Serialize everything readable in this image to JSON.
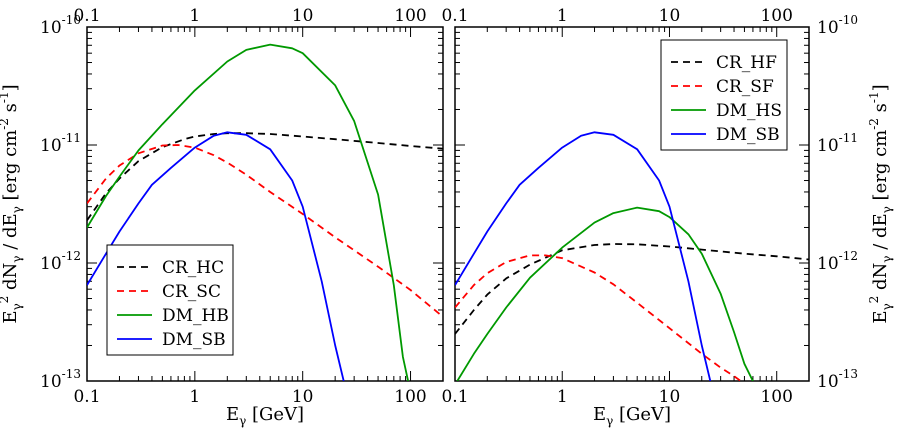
{
  "chart_data": [
    {
      "panel": "left",
      "type": "line",
      "x_scale": "log",
      "y_scale": "log",
      "xlim": [
        0.1,
        200
      ],
      "ylim": [
        1e-13,
        1e-10
      ],
      "xlabel": "E_γ [GeV]",
      "ylabel": "E_γ^2 dN_γ / dE_γ [erg cm^-2 s^-1]",
      "x_tick_labels": [
        "0.1",
        "1",
        "10",
        "100"
      ],
      "x_tick_labels_top": [
        "0.1",
        "1",
        "10",
        "100"
      ],
      "y_tick_labels": [
        "10^-13",
        "10^-12",
        "10^-11",
        "10^-10"
      ],
      "legend_position": "bottom-left",
      "series": [
        {
          "name": "CR_HC",
          "color": "#000000",
          "style": "dashed",
          "x": [
            0.1,
            0.15,
            0.2,
            0.3,
            0.5,
            0.8,
            1,
            1.5,
            2,
            3,
            5,
            10,
            20,
            50,
            100,
            200
          ],
          "y": [
            2.3e-12,
            3.9e-12,
            5.2e-12,
            7.3e-12,
            9.6e-12,
            1.12e-11,
            1.18e-11,
            1.24e-11,
            1.26e-11,
            1.26e-11,
            1.24e-11,
            1.18e-11,
            1.12e-11,
            1.04e-11,
            9.8e-12,
            9.3e-12
          ]
        },
        {
          "name": "CR_SC",
          "color": "#ff0000",
          "style": "dashed",
          "x": [
            0.1,
            0.15,
            0.2,
            0.3,
            0.5,
            0.7,
            1,
            1.5,
            2,
            3,
            5,
            10,
            20,
            50,
            100,
            200
          ],
          "y": [
            3.2e-12,
            5.2e-12,
            6.7e-12,
            8.5e-12,
            9.9e-12,
            1e-11,
            9.5e-12,
            8.2e-12,
            7.1e-12,
            5.6e-12,
            4e-12,
            2.6e-12,
            1.65e-12,
            9.3e-13,
            5.9e-13,
            3.5e-13
          ]
        },
        {
          "name": "DM_HB",
          "color": "#009900",
          "style": "solid",
          "x": [
            0.1,
            0.15,
            0.2,
            0.3,
            0.5,
            1,
            2,
            3,
            5,
            8,
            10,
            20,
            30,
            50,
            70,
            85,
            95
          ],
          "y": [
            2e-12,
            3.7e-12,
            5.4e-12,
            9e-12,
            1.5e-11,
            2.9e-11,
            5.1e-11,
            6.4e-11,
            7.1e-11,
            6.6e-11,
            6e-11,
            3.2e-11,
            1.6e-11,
            3.8e-12,
            6.5e-13,
            1.6e-13,
            1e-13
          ]
        },
        {
          "name": "DM_SB",
          "color": "#0000ff",
          "style": "solid",
          "x": [
            0.1,
            0.15,
            0.2,
            0.3,
            0.4,
            0.6,
            1,
            1.5,
            2,
            3,
            5,
            8,
            10,
            15,
            20,
            24
          ],
          "y": [
            6.5e-13,
            1.2e-12,
            1.85e-12,
            3.2e-12,
            4.6e-12,
            6.4e-12,
            9.5e-12,
            1.2e-11,
            1.28e-11,
            1.22e-11,
            9.2e-12,
            5e-12,
            3e-12,
            7e-13,
            2e-13,
            1e-13
          ]
        }
      ]
    },
    {
      "panel": "right",
      "type": "line",
      "x_scale": "log",
      "y_scale": "log",
      "xlim": [
        0.1,
        200
      ],
      "ylim": [
        1e-13,
        1e-10
      ],
      "xlabel": "E_γ [GeV]",
      "ylabel": "E_γ^2 dN_γ / dE_γ [erg cm^-2 s^-1]",
      "x_tick_labels": [
        "0.1",
        "1",
        "10",
        "100"
      ],
      "x_tick_labels_top": [
        "0.1",
        "1",
        "10",
        "100"
      ],
      "y_tick_labels": [
        "10^-13",
        "10^-12",
        "10^-11",
        "10^-10"
      ],
      "legend_position": "top-right",
      "series": [
        {
          "name": "CR_HF",
          "color": "#000000",
          "style": "dashed",
          "x": [
            0.1,
            0.15,
            0.2,
            0.3,
            0.5,
            1,
            2,
            3,
            5,
            10,
            20,
            50,
            100,
            200
          ],
          "y": [
            2.5e-13,
            4e-13,
            5.4e-13,
            7.4e-13,
            9.7e-13,
            1.28e-12,
            1.42e-12,
            1.45e-12,
            1.44e-12,
            1.38e-12,
            1.3e-12,
            1.2e-12,
            1.14e-12,
            1.07e-12
          ]
        },
        {
          "name": "CR_SF",
          "color": "#ff0000",
          "style": "dashed",
          "x": [
            0.1,
            0.15,
            0.2,
            0.3,
            0.5,
            0.7,
            1,
            2,
            3,
            5,
            10,
            20,
            30,
            40,
            50
          ],
          "y": [
            4.2e-13,
            6.5e-13,
            8.2e-13,
            1.02e-12,
            1.16e-12,
            1.16e-12,
            1.1e-12,
            8.3e-13,
            6.6e-13,
            4.6e-13,
            2.8e-13,
            1.7e-13,
            1.3e-13,
            1.1e-13,
            9.5e-14
          ]
        },
        {
          "name": "DM_HS",
          "color": "#009900",
          "style": "solid",
          "x": [
            0.105,
            0.15,
            0.2,
            0.3,
            0.5,
            1,
            2,
            3,
            5,
            8,
            10,
            15,
            20,
            30,
            40,
            50,
            60
          ],
          "y": [
            1e-13,
            1.7e-13,
            2.5e-13,
            4.2e-13,
            7.5e-13,
            1.35e-12,
            2.2e-12,
            2.65e-12,
            2.95e-12,
            2.75e-12,
            2.45e-12,
            1.75e-12,
            1.2e-12,
            5.5e-13,
            2.6e-13,
            1.4e-13,
            1e-13
          ]
        },
        {
          "name": "DM_SB",
          "color": "#0000ff",
          "style": "solid",
          "x": [
            0.1,
            0.15,
            0.2,
            0.3,
            0.4,
            0.6,
            1,
            1.5,
            2,
            3,
            5,
            8,
            10,
            15,
            20,
            24
          ],
          "y": [
            6.5e-13,
            1.2e-12,
            1.85e-12,
            3.2e-12,
            4.6e-12,
            6.4e-12,
            9.5e-12,
            1.2e-11,
            1.28e-11,
            1.22e-11,
            9.2e-12,
            5e-12,
            3e-12,
            7e-13,
            2e-13,
            1e-13
          ]
        }
      ]
    }
  ]
}
